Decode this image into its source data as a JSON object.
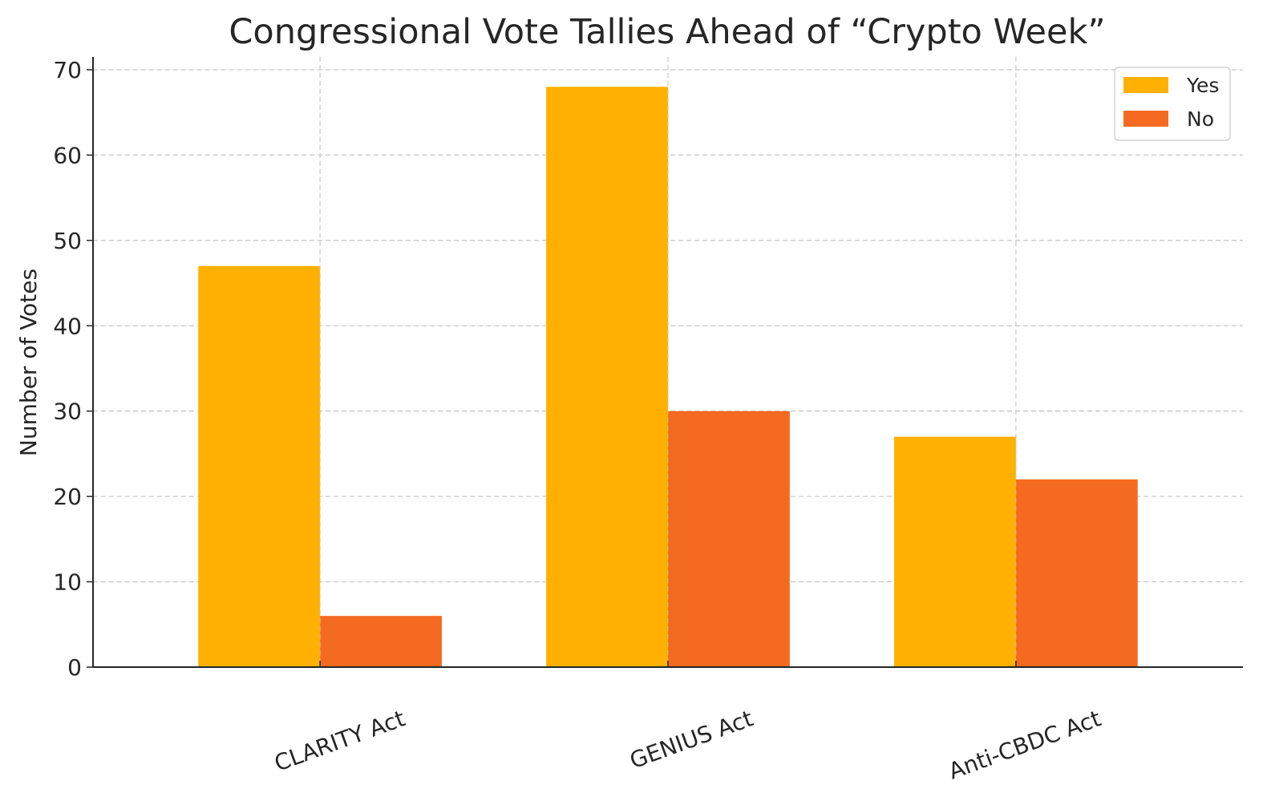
{
  "chart_data": {
    "type": "bar",
    "title": "Congressional Vote Tallies Ahead of “Crypto Week”",
    "xlabel": "",
    "ylabel": "Number of Votes",
    "categories": [
      "CLARITY Act",
      "GENIUS Act",
      "Anti-CBDC Act"
    ],
    "series": [
      {
        "name": "Yes",
        "values": [
          47,
          68,
          27
        ],
        "color": "#ffb000"
      },
      {
        "name": "No",
        "values": [
          6,
          30,
          22
        ],
        "color": "#f56a21"
      }
    ],
    "ylim": [
      0,
      71.5
    ],
    "yticks": [
      0,
      10,
      20,
      30,
      40,
      50,
      60,
      70
    ],
    "grid": true,
    "legend_position": "top-right"
  }
}
